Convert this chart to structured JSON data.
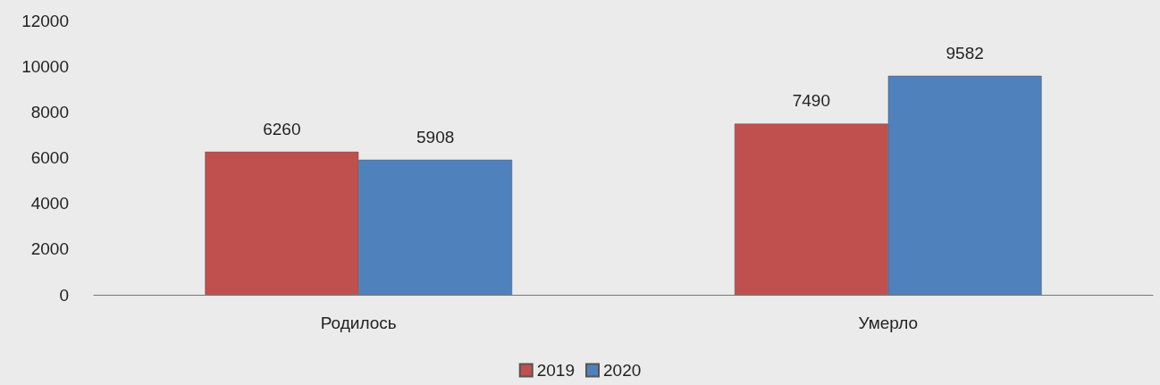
{
  "chart_data": {
    "type": "bar",
    "categories": [
      "Родилось",
      "Умерло"
    ],
    "series": [
      {
        "name": "2019",
        "color": "#c0504d",
        "values": [
          6260,
          7490
        ]
      },
      {
        "name": "2020",
        "color": "#4f81bd",
        "values": [
          5908,
          9582
        ]
      }
    ],
    "ylim": [
      0,
      12000
    ],
    "yticks": [
      0,
      2000,
      4000,
      6000,
      8000,
      10000,
      12000
    ],
    "grid": false,
    "legend": "bottom",
    "data_labels": true
  }
}
